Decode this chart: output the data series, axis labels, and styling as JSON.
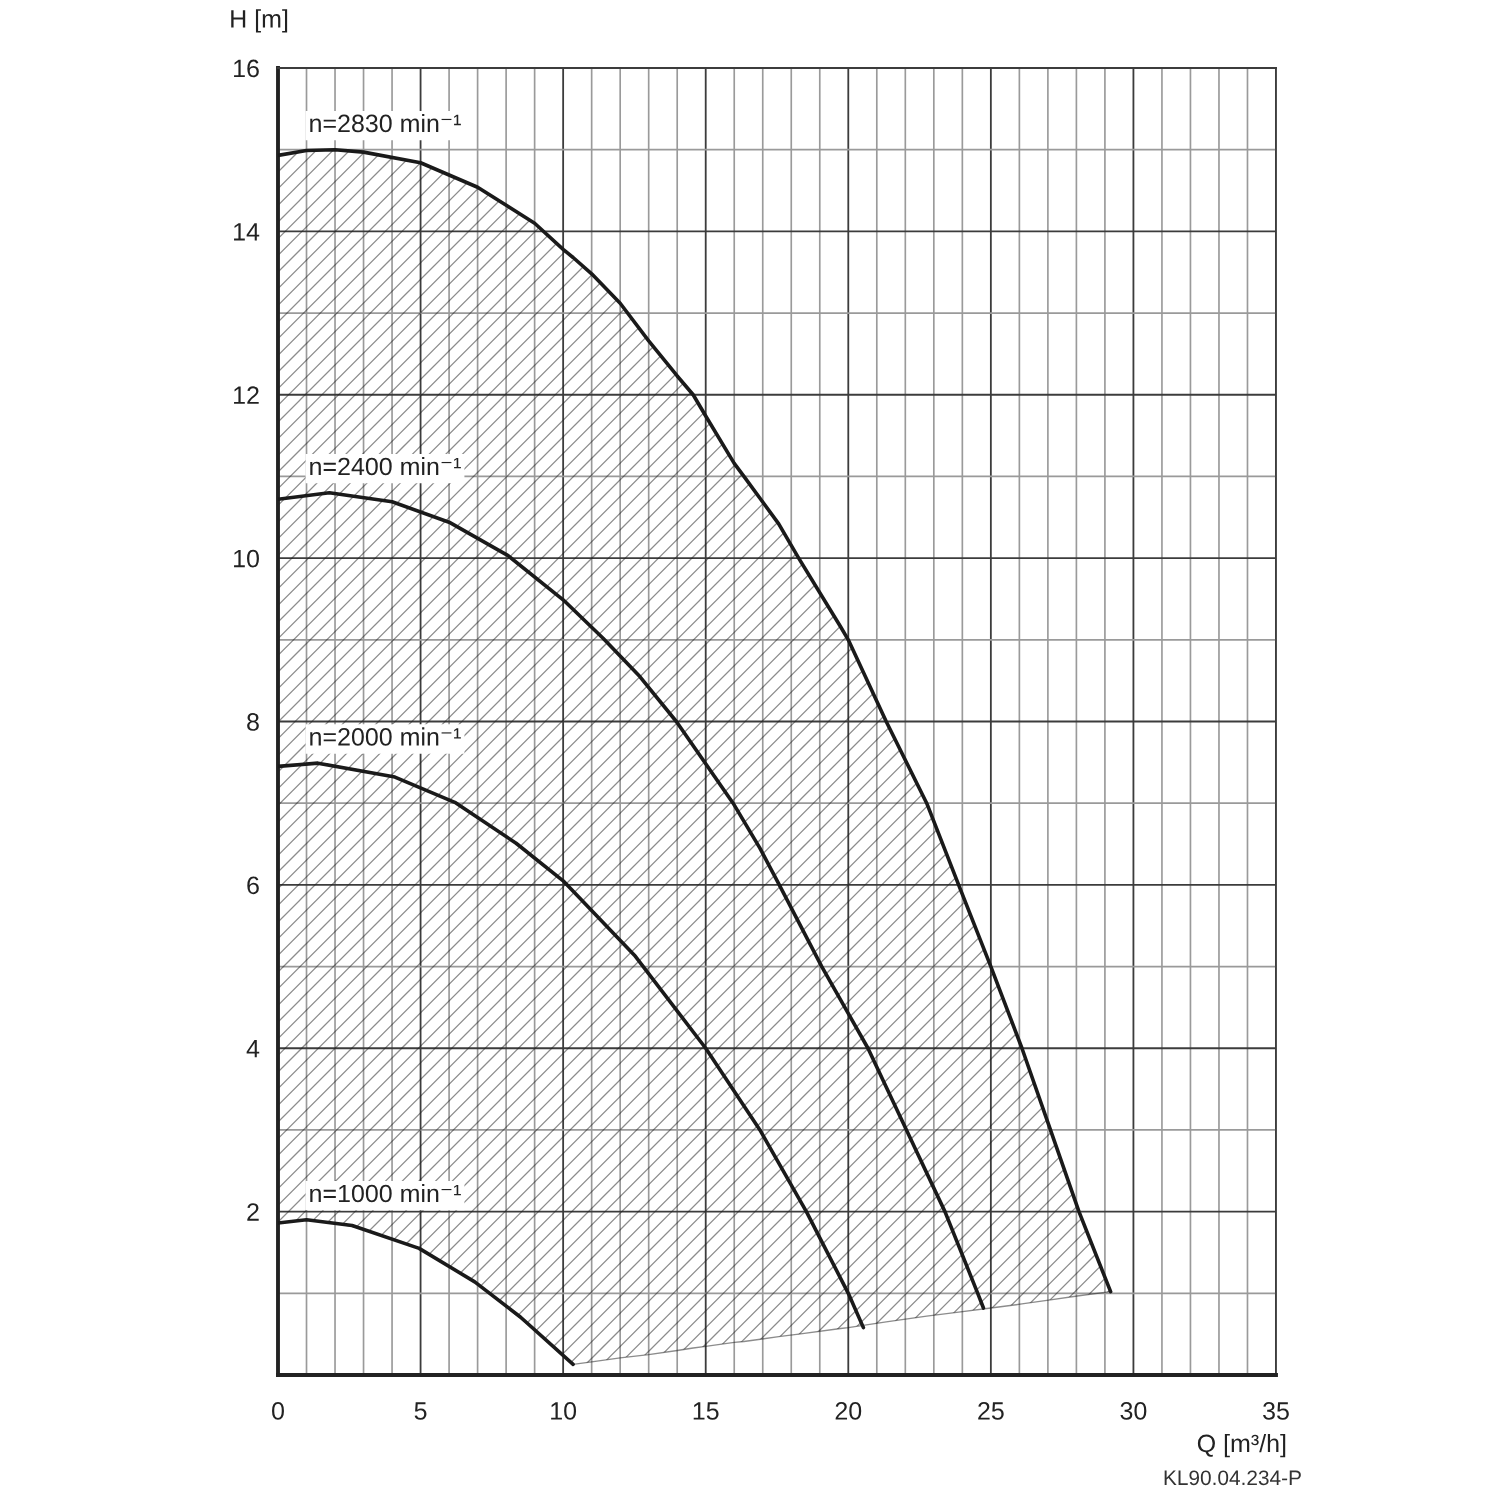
{
  "chart_data": {
    "type": "line",
    "xlabel": "Q [m³/h]",
    "ylabel": "H [m]",
    "annotations": [
      "KL90.04.234-P"
    ],
    "xlim": [
      0,
      35
    ],
    "ylim": [
      0,
      16
    ],
    "xticks": [
      0,
      {
        "value": 1,
        "label": null
      },
      {
        "value": 2,
        "label": null
      },
      {
        "value": 3,
        "label": null
      },
      {
        "value": 4,
        "label": null
      },
      5,
      {
        "value": 6,
        "label": null
      },
      {
        "value": 7,
        "label": null
      },
      {
        "value": 8,
        "label": null
      },
      {
        "value": 9,
        "label": null
      },
      10,
      {
        "value": 11,
        "label": null
      },
      {
        "value": 12,
        "label": null
      },
      {
        "value": 13,
        "label": null
      },
      {
        "value": 14,
        "label": null
      },
      15,
      {
        "value": 16,
        "label": null
      },
      {
        "value": 17,
        "label": null
      },
      {
        "value": 18,
        "label": null
      },
      {
        "value": 19,
        "label": null
      },
      20,
      {
        "value": 21,
        "label": null
      },
      {
        "value": 22,
        "label": null
      },
      {
        "value": 23,
        "label": null
      },
      {
        "value": 24,
        "label": null
      },
      25,
      {
        "value": 26,
        "label": null
      },
      {
        "value": 27,
        "label": null
      },
      {
        "value": 28,
        "label": null
      },
      {
        "value": 29,
        "label": null
      },
      30,
      {
        "value": 31,
        "label": null
      },
      {
        "value": 32,
        "label": null
      },
      {
        "value": 33,
        "label": null
      },
      {
        "value": 34,
        "label": null
      },
      35
    ],
    "yticks": [
      {
        "value": 0,
        "label": null
      },
      {
        "value": 1,
        "label": null
      },
      2,
      {
        "value": 3,
        "label": null
      },
      4,
      {
        "value": 5,
        "label": null
      },
      6,
      {
        "value": 7,
        "label": null
      },
      8,
      {
        "value": 9,
        "label": null
      },
      10,
      {
        "value": 11,
        "label": null
      },
      12,
      {
        "value": 13,
        "label": null
      },
      14,
      {
        "value": 15,
        "label": null
      },
      16
    ],
    "grid": true,
    "line_style": "solid",
    "series": [
      {
        "name": "n=2830 min⁻¹",
        "color": "#1a1a1a",
        "x": [
          0,
          1,
          2,
          3,
          5,
          7,
          9,
          10,
          10.35,
          11,
          12,
          13,
          14,
          14.56,
          15,
          16,
          16.34,
          17.56,
          18.26,
          19.73,
          20.0,
          21.33,
          22.75,
          23.87,
          25.0,
          26.09,
          27.09,
          28.09,
          29.2
        ],
        "values": [
          14.93,
          14.99,
          15.0,
          14.97,
          14.84,
          14.54,
          14.1,
          13.78,
          13.68,
          13.48,
          13.12,
          12.66,
          12.23,
          12.0,
          11.74,
          11.16,
          11.0,
          10.42,
          10.0,
          9.16,
          9.0,
          8.0,
          7.0,
          6.0,
          5.0,
          4.0,
          3.0,
          2.0,
          1.02
        ],
        "upper": [
          14.93,
          14.99,
          15.0,
          14.97,
          14.84,
          14.54,
          14.1,
          13.78,
          13.68,
          13.48,
          13.12,
          12.66,
          12.23,
          12.0,
          11.74,
          11.16,
          11.0,
          10.42,
          10.0,
          9.16,
          9.0,
          8.0,
          7.0,
          6.0,
          5.0,
          4.0,
          3.0,
          2.0,
          1.02
        ],
        "lower": [
          1.86,
          1.9,
          1.86,
          1.79,
          1.54,
          1.12,
          0.55,
          0.24,
          0.13,
          0.16,
          0.21,
          0.25,
          0.3,
          0.33,
          0.35,
          0.4,
          0.41,
          0.47,
          0.5,
          0.57,
          0.58,
          0.65,
          0.72,
          0.77,
          0.82,
          0.87,
          0.92,
          0.97,
          1.02
        ]
      },
      {
        "name": "n=2400 min⁻¹",
        "color": "#1a1a1a",
        "x": [
          0,
          1.8,
          4.0,
          6.0,
          8.07,
          10.0,
          11.4,
          12.69,
          13.97,
          15.96,
          16.9,
          17.58,
          19.07,
          20.69,
          22.04,
          23.39,
          24.54,
          24.74
        ],
        "values": [
          10.72,
          10.8,
          10.69,
          10.44,
          10.03,
          9.49,
          9.02,
          8.55,
          8.0,
          7.0,
          6.45,
          6.0,
          5.0,
          4.0,
          3.0,
          2.0,
          1.0,
          0.82
        ]
      },
      {
        "name": "n=2000 min⁻¹",
        "color": "#1a1a1a",
        "x": [
          0,
          1.4,
          4.1,
          6.2,
          8.35,
          10.0,
          12.5,
          15.0,
          16.9,
          18.53,
          20.0,
          20.53
        ],
        "values": [
          7.45,
          7.49,
          7.32,
          7.01,
          6.51,
          6.05,
          5.14,
          4.0,
          3.0,
          2.0,
          1.0,
          0.58
        ]
      },
      {
        "name": "n=1000 min⁻¹",
        "color": "#1a1a1a",
        "x": [
          0,
          1.0,
          2.6,
          4.95,
          6.9,
          8.5,
          10.35
        ],
        "values": [
          1.86,
          1.9,
          1.83,
          1.55,
          1.14,
          0.71,
          0.13
        ]
      }
    ]
  }
}
